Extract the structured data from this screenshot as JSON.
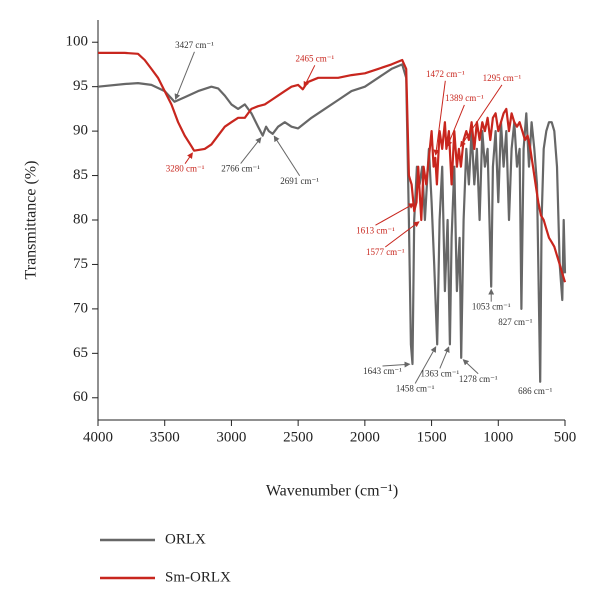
{
  "chart_data": {
    "type": "line",
    "xlabel": "Wavenumber (cm⁻¹)",
    "ylabel": "Transmittance (%)",
    "xlim": [
      4000,
      500
    ],
    "ylim": [
      57.5,
      102.5
    ],
    "xticks": [
      4000,
      3500,
      3000,
      2500,
      2000,
      1500,
      1000,
      500
    ],
    "yticks": [
      60,
      65,
      70,
      75,
      80,
      85,
      90,
      95,
      100
    ],
    "grid": false,
    "legend": "bottom",
    "series": [
      {
        "name": "ORLX",
        "color": "#676767",
        "x": [
          4000,
          3800,
          3700,
          3600,
          3500,
          3427,
          3350,
          3250,
          3150,
          3100,
          3050,
          3000,
          2950,
          2900,
          2850,
          2800,
          2766,
          2740,
          2720,
          2691,
          2650,
          2600,
          2550,
          2500,
          2400,
          2300,
          2200,
          2100,
          2000,
          1900,
          1800,
          1720,
          1690,
          1670,
          1655,
          1643,
          1630,
          1610,
          1590,
          1570,
          1550,
          1520,
          1500,
          1480,
          1458,
          1440,
          1420,
          1400,
          1380,
          1363,
          1350,
          1330,
          1310,
          1290,
          1278,
          1260,
          1240,
          1220,
          1200,
          1180,
          1160,
          1140,
          1120,
          1100,
          1080,
          1053,
          1040,
          1020,
          1000,
          980,
          960,
          940,
          920,
          900,
          880,
          860,
          840,
          827,
          810,
          790,
          770,
          750,
          730,
          710,
          700,
          686,
          675,
          660,
          640,
          620,
          600,
          580,
          560,
          540,
          520,
          510,
          500
        ],
        "values": [
          95,
          95.3,
          95.4,
          95.2,
          94.5,
          93.3,
          93.8,
          94.5,
          95,
          94.8,
          94,
          93,
          92.5,
          93,
          92,
          90.5,
          89.5,
          90.5,
          90,
          89.7,
          90.5,
          91,
          90.5,
          90.3,
          91.5,
          92.5,
          93.5,
          94.5,
          95,
          96,
          97,
          97.5,
          96,
          80,
          66,
          63.8,
          80,
          86,
          84,
          86,
          80,
          88,
          82,
          75,
          66,
          80,
          86,
          72,
          80,
          66,
          78,
          86,
          72,
          78,
          64.5,
          80,
          88,
          84,
          90,
          84,
          88,
          80,
          90,
          86,
          88,
          72.5,
          86,
          90,
          82,
          91,
          86,
          90,
          80,
          88,
          91,
          86,
          88,
          70,
          88,
          92,
          86,
          91,
          88,
          84,
          75,
          61.8,
          80,
          88,
          90,
          91,
          91,
          90,
          86,
          75,
          71,
          80,
          74
        ]
      },
      {
        "name": "Sm-ORLX",
        "color": "#c8261e",
        "x": [
          4000,
          3800,
          3700,
          3650,
          3600,
          3550,
          3500,
          3450,
          3400,
          3350,
          3300,
          3280,
          3200,
          3150,
          3100,
          3050,
          3000,
          2950,
          2900,
          2850,
          2800,
          2750,
          2700,
          2650,
          2600,
          2550,
          2500,
          2465,
          2430,
          2350,
          2200,
          2100,
          2000,
          1900,
          1800,
          1720,
          1690,
          1670,
          1650,
          1630,
          1613,
          1600,
          1577,
          1560,
          1540,
          1520,
          1500,
          1485,
          1472,
          1460,
          1440,
          1420,
          1400,
          1389,
          1370,
          1350,
          1330,
          1310,
          1295,
          1280,
          1260,
          1240,
          1220,
          1200,
          1180,
          1160,
          1140,
          1120,
          1100,
          1080,
          1060,
          1040,
          1020,
          1000,
          980,
          960,
          940,
          920,
          900,
          880,
          860,
          840,
          820,
          800,
          780,
          760,
          740,
          720,
          700,
          680,
          660,
          640,
          620,
          600,
          580,
          560,
          540,
          520,
          500
        ],
        "values": [
          98.8,
          98.8,
          98.7,
          98,
          97,
          96,
          94.5,
          93,
          91,
          89.5,
          88.3,
          87.8,
          88,
          88.5,
          89.5,
          90.5,
          91,
          91.5,
          91.5,
          92.5,
          92.8,
          93,
          93.5,
          94,
          94.5,
          95,
          95.2,
          94.7,
          95.5,
          96,
          96,
          96.3,
          96.5,
          97,
          97.5,
          98,
          97,
          85,
          84,
          81,
          82,
          86,
          80,
          86,
          84,
          87,
          90,
          86,
          87,
          84,
          90,
          88,
          91,
          88,
          90,
          84,
          90,
          86,
          88,
          86,
          89,
          90,
          89,
          91,
          88,
          91,
          89,
          91,
          90,
          91.5,
          89,
          91.5,
          92,
          90,
          91,
          92,
          92.5,
          90,
          92,
          91,
          90.5,
          91,
          90,
          89,
          89.5,
          88,
          86,
          84,
          82,
          80.5,
          80,
          79,
          78,
          77.5,
          77,
          76,
          75,
          74,
          73
        ]
      }
    ],
    "annotations": [
      {
        "text": "3427 cm⁻¹",
        "x": 3427,
        "y": 93.3,
        "series": 0
      },
      {
        "text": "3280 cm⁻¹",
        "x": 3280,
        "y": 87.8,
        "series": 1
      },
      {
        "text": "2766 cm⁻¹",
        "x": 2766,
        "y": 89.5,
        "series": 0
      },
      {
        "text": "2691 cm⁻¹",
        "x": 2691,
        "y": 89.7,
        "series": 0
      },
      {
        "text": "2465 cm⁻¹",
        "x": 2465,
        "y": 94.7,
        "series": 1
      },
      {
        "text": "1472 cm⁻¹",
        "x": 1472,
        "y": 87,
        "series": 1
      },
      {
        "text": "1389 cm⁻¹",
        "x": 1389,
        "y": 88,
        "series": 1
      },
      {
        "text": "1295 cm⁻¹",
        "x": 1295,
        "y": 88,
        "series": 1
      },
      {
        "text": "1613 cm⁻¹",
        "x": 1613,
        "y": 82,
        "series": 1
      },
      {
        "text": "1577 cm⁻¹",
        "x": 1577,
        "y": 80,
        "series": 1
      },
      {
        "text": "1643 cm⁻¹",
        "x": 1643,
        "y": 63.8,
        "series": 0
      },
      {
        "text": "1458 cm⁻¹",
        "x": 1458,
        "y": 66,
        "series": 0
      },
      {
        "text": "1363 cm⁻¹",
        "x": 1363,
        "y": 66,
        "series": 0
      },
      {
        "text": "1278 cm⁻¹",
        "x": 1278,
        "y": 64.5,
        "series": 0
      },
      {
        "text": "1053 cm⁻¹",
        "x": 1053,
        "y": 72.5,
        "series": 0
      },
      {
        "text": "827 cm⁻¹",
        "x": 827,
        "y": 70,
        "series": 0
      },
      {
        "text": "686 cm⁻¹",
        "x": 686,
        "y": 61.8,
        "series": 0
      }
    ]
  }
}
